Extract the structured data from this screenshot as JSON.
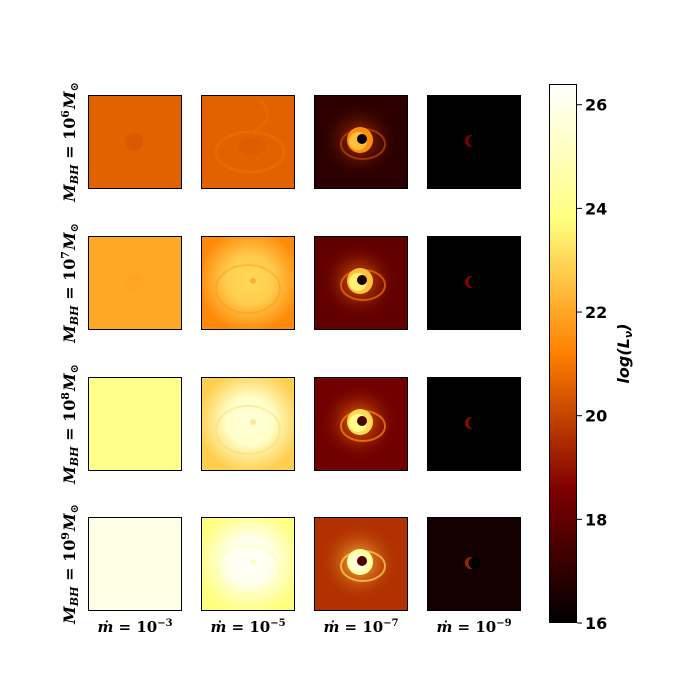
{
  "chart_data": {
    "type": "heatmap",
    "rows": [
      {
        "label": "M_BH = 10^6 M_⊙",
        "base": "M",
        "sub": "BH",
        "eq": " = 10",
        "exp": "6",
        "unit": "M",
        "usub": "⊙"
      },
      {
        "label": "M_BH = 10^7 M_⊙",
        "base": "M",
        "sub": "BH",
        "eq": " = 10",
        "exp": "7",
        "unit": "M",
        "usub": "⊙"
      },
      {
        "label": "M_BH = 10^8 M_⊙",
        "base": "M",
        "sub": "BH",
        "eq": " = 10",
        "exp": "8",
        "unit": "M",
        "usub": "⊙"
      },
      {
        "label": "M_BH = 10^9 M_⊙",
        "base": "M",
        "sub": "BH",
        "eq": " = 10",
        "exp": "9",
        "unit": "M",
        "usub": "⊙"
      }
    ],
    "columns": [
      {
        "label": "ṁ = 10^-3",
        "base": "ṁ",
        "eq": " = 10",
        "exp": "−3"
      },
      {
        "label": "ṁ = 10^-5",
        "base": "ṁ",
        "eq": " = 10",
        "exp": "−5"
      },
      {
        "label": "ṁ = 10^-7",
        "base": "ṁ",
        "eq": " = 10",
        "exp": "−7"
      },
      {
        "label": "ṁ = 10^-9",
        "base": "ṁ",
        "eq": " = 10",
        "exp": "−9"
      }
    ],
    "panels": [
      [
        {
          "background": 20.6,
          "feature": "uniform",
          "center": 20.3,
          "peak": 20.6
        },
        {
          "background": 20.6,
          "feature": "faint-ring",
          "center": 20.4,
          "peak": 20.9
        },
        {
          "background": 16.9,
          "feature": "ring",
          "center": 16.0,
          "peak": 22.5
        },
        {
          "background": 16.0,
          "feature": "crescent",
          "center": 16.0,
          "peak": 18.5
        }
      ],
      [
        {
          "background": 22.0,
          "feature": "uniform",
          "center": 21.9,
          "peak": 22.0
        },
        {
          "background": 21.4,
          "feature": "diffuse-glow",
          "center": 22.8,
          "peak": 23.0
        },
        {
          "background": 18.0,
          "feature": "ring",
          "center": 16.5,
          "peak": 23.5
        },
        {
          "background": 16.0,
          "feature": "crescent",
          "center": 16.0,
          "peak": 18.7
        }
      ],
      [
        {
          "background": 24.0,
          "feature": "uniform",
          "center": 24.0,
          "peak": 24.0
        },
        {
          "background": 22.8,
          "feature": "diffuse-glow",
          "center": 25.3,
          "peak": 25.6
        },
        {
          "background": 18.3,
          "feature": "ring",
          "center": 17.5,
          "peak": 24.0
        },
        {
          "background": 16.0,
          "feature": "crescent",
          "center": 16.0,
          "peak": 18.8
        }
      ],
      [
        {
          "background": 25.9,
          "feature": "uniform",
          "center": 25.8,
          "peak": 26.0
        },
        {
          "background": 23.8,
          "feature": "diffuse-glow",
          "center": 26.0,
          "peak": 26.3
        },
        {
          "background": 19.6,
          "feature": "ring",
          "center": 17.5,
          "peak": 25.5
        },
        {
          "background": 16.4,
          "feature": "crescent",
          "center": 16.0,
          "peak": 19.3
        }
      ]
    ],
    "colorbar": {
      "colormap": "afmhot",
      "range": [
        16,
        26.4
      ],
      "ticks": [
        "16",
        "18",
        "20",
        "22",
        "24",
        "26"
      ],
      "label": "log(L_ν)",
      "label_main": "log(L",
      "label_sub": "ν",
      "label_end": ")"
    }
  }
}
